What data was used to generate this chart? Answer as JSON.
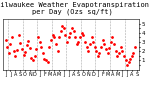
{
  "title": "Milwaukee Weather Evapotranspiration\nper Day (Ozs sq/ft)",
  "background_color": "#ffffff",
  "plot_bg_color": "#ffffff",
  "dot_color": "#ff0000",
  "dot_size": 2,
  "ylim": [
    0,
    5.5
  ],
  "ytick_vals": [
    0.5,
    1.0,
    1.5,
    2.0,
    2.5,
    3.0,
    3.5,
    4.0,
    4.5,
    5.0
  ],
  "ytick_labels": [
    "",
    "1",
    "",
    "2",
    "",
    "3",
    "",
    "4",
    "",
    "5"
  ],
  "month_labels": [
    "J",
    "J",
    "A",
    "S",
    "O",
    "N",
    "D",
    "J",
    "F",
    "M",
    "A",
    "M",
    "J",
    "J",
    "A",
    "S",
    "O",
    "N",
    "D",
    "J",
    "F",
    "M",
    "A",
    "M",
    "J",
    "J",
    "A",
    "S"
  ],
  "month_positions": [
    0,
    1,
    2,
    3,
    4,
    5,
    6,
    7,
    8,
    9,
    10,
    11,
    12,
    13,
    14,
    15,
    16,
    17,
    18,
    19,
    20,
    21,
    22,
    23,
    24,
    25,
    26,
    27
  ],
  "vline_positions": [
    0.5,
    3.5,
    6.5,
    9.5,
    12.5,
    15.5,
    18.5,
    21.5,
    24.5
  ],
  "x": [
    0.0,
    0.3,
    0.6,
    1.0,
    1.3,
    1.7,
    2.0,
    2.3,
    2.7,
    3.0,
    3.3,
    3.7,
    4.0,
    4.3,
    4.7,
    5.0,
    5.3,
    5.7,
    6.0,
    6.3,
    6.7,
    7.0,
    7.3,
    7.7,
    8.0,
    8.3,
    8.7,
    9.0,
    9.3,
    9.7,
    10.0,
    10.3,
    10.7,
    11.0,
    11.3,
    11.7,
    12.0,
    12.3,
    12.7,
    13.0,
    13.3,
    13.7,
    14.0,
    14.3,
    14.7,
    15.0,
    15.3,
    15.7,
    16.0,
    16.3,
    16.7,
    17.0,
    17.3,
    17.7,
    18.0,
    18.3,
    18.7,
    19.0,
    19.3,
    19.7,
    20.0,
    20.3,
    20.7,
    21.0,
    21.3,
    21.7,
    22.0,
    22.3,
    22.7,
    23.0,
    23.3,
    23.7,
    24.0,
    24.3,
    24.7,
    25.0,
    25.3,
    25.7,
    26.0,
    26.3,
    26.7
  ],
  "y": [
    3.2,
    2.5,
    1.8,
    2.8,
    3.5,
    2.0,
    1.5,
    2.1,
    3.8,
    2.9,
    2.2,
    1.6,
    1.9,
    2.7,
    3.1,
    2.4,
    1.3,
    1.0,
    1.5,
    2.2,
    3.6,
    3.0,
    2.5,
    1.8,
    1.2,
    1.0,
    0.8,
    2.5,
    3.2,
    3.8,
    3.5,
    2.8,
    2.0,
    3.5,
    4.2,
    4.8,
    4.5,
    3.8,
    3.0,
    3.5,
    4.0,
    4.5,
    4.2,
    3.5,
    2.8,
    3.0,
    3.5,
    4.0,
    3.8,
    3.0,
    2.5,
    2.0,
    2.8,
    3.5,
    3.0,
    2.5,
    2.0,
    1.5,
    1.8,
    2.5,
    3.2,
    2.8,
    2.2,
    1.8,
    2.3,
    3.0,
    3.5,
    2.8,
    2.0,
    1.5,
    1.8,
    2.5,
    2.0,
    1.5,
    1.0,
    0.5,
    0.8,
    1.2,
    1.5,
    1.8,
    2.5
  ],
  "title_fontsize": 5.0,
  "tick_fontsize": 4.0,
  "header_bg": "#c0c0c0"
}
